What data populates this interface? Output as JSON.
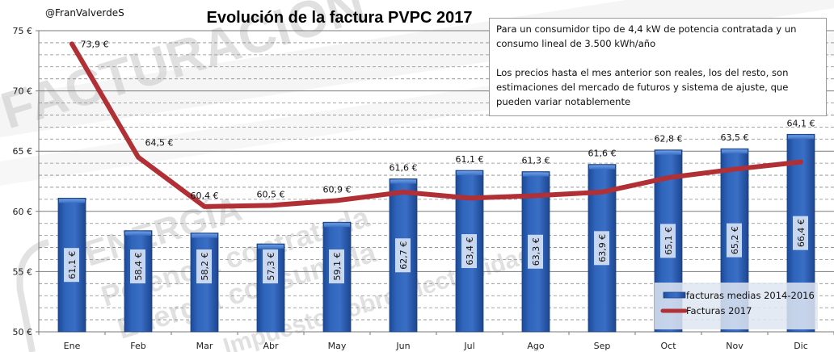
{
  "chart_data": {
    "type": "bar",
    "title": "Evolución de la factura PVPC 2017",
    "author": "@FranValverdeS",
    "xlabel": "",
    "ylabel": "",
    "ylim": [
      50,
      75
    ],
    "y_ticks": [
      {
        "value": 50,
        "label": "50 €"
      },
      {
        "value": 55,
        "label": "55 €"
      },
      {
        "value": 60,
        "label": "60 €"
      },
      {
        "value": 65,
        "label": "65 €"
      },
      {
        "value": 70,
        "label": "70 €"
      },
      {
        "value": 75,
        "label": "75 €"
      }
    ],
    "y_minor_step": 1,
    "grid": true,
    "categories": [
      "Ene",
      "Feb",
      "Mar",
      "Abr",
      "May",
      "Jun",
      "Jul",
      "Ago",
      "Sep",
      "Oct",
      "Nov",
      "Dic"
    ],
    "series": [
      {
        "name": "facturas medias 2014-2016",
        "type": "bar",
        "color": "#2f62b5",
        "values": [
          61.1,
          58.4,
          58.2,
          57.3,
          59.1,
          62.7,
          63.4,
          63.3,
          63.9,
          65.1,
          65.2,
          66.4
        ],
        "labels": [
          "61,1 €",
          "58,4 €",
          "58,2 €",
          "57,3 €",
          "59,1 €",
          "62,7 €",
          "63,4 €",
          "63,3 €",
          "63,9 €",
          "65,1 €",
          "65,2 €",
          "66,4 €"
        ]
      },
      {
        "name": "Facturas 2017",
        "type": "line",
        "color": "#b03035",
        "values": [
          73.9,
          64.5,
          60.4,
          60.5,
          60.9,
          61.6,
          61.1,
          61.3,
          61.6,
          62.8,
          63.5,
          64.1
        ],
        "labels": [
          "73,9 €",
          "64,5 €",
          "60,4 €",
          "60,5 €",
          "60,9 €",
          "61,6 €",
          "61,1 €",
          "61,3 €",
          "61,6 €",
          "62,8 €",
          "63,5 €",
          "64,1 €"
        ]
      }
    ],
    "legend": {
      "position": "bottom-right",
      "entries": [
        "facturas medias 2014-2016",
        "Facturas 2017"
      ]
    },
    "annotation": {
      "paragraphs": [
        "Para un consumidor tipo de 4,4 kW de potencia contratada y un consumo lineal de 3.500 kWh/año",
        "Los precios hasta el mes anterior son reales, los del resto, son estimaciones del mercado de futuros y sistema de ajuste, que pueden variar notablemente"
      ]
    },
    "watermark_words": [
      "FACTURACIÓN",
      "ENERGÍA",
      "Potencia contratada",
      "Energía consumida",
      "Impuesto sobre electricidad"
    ]
  }
}
